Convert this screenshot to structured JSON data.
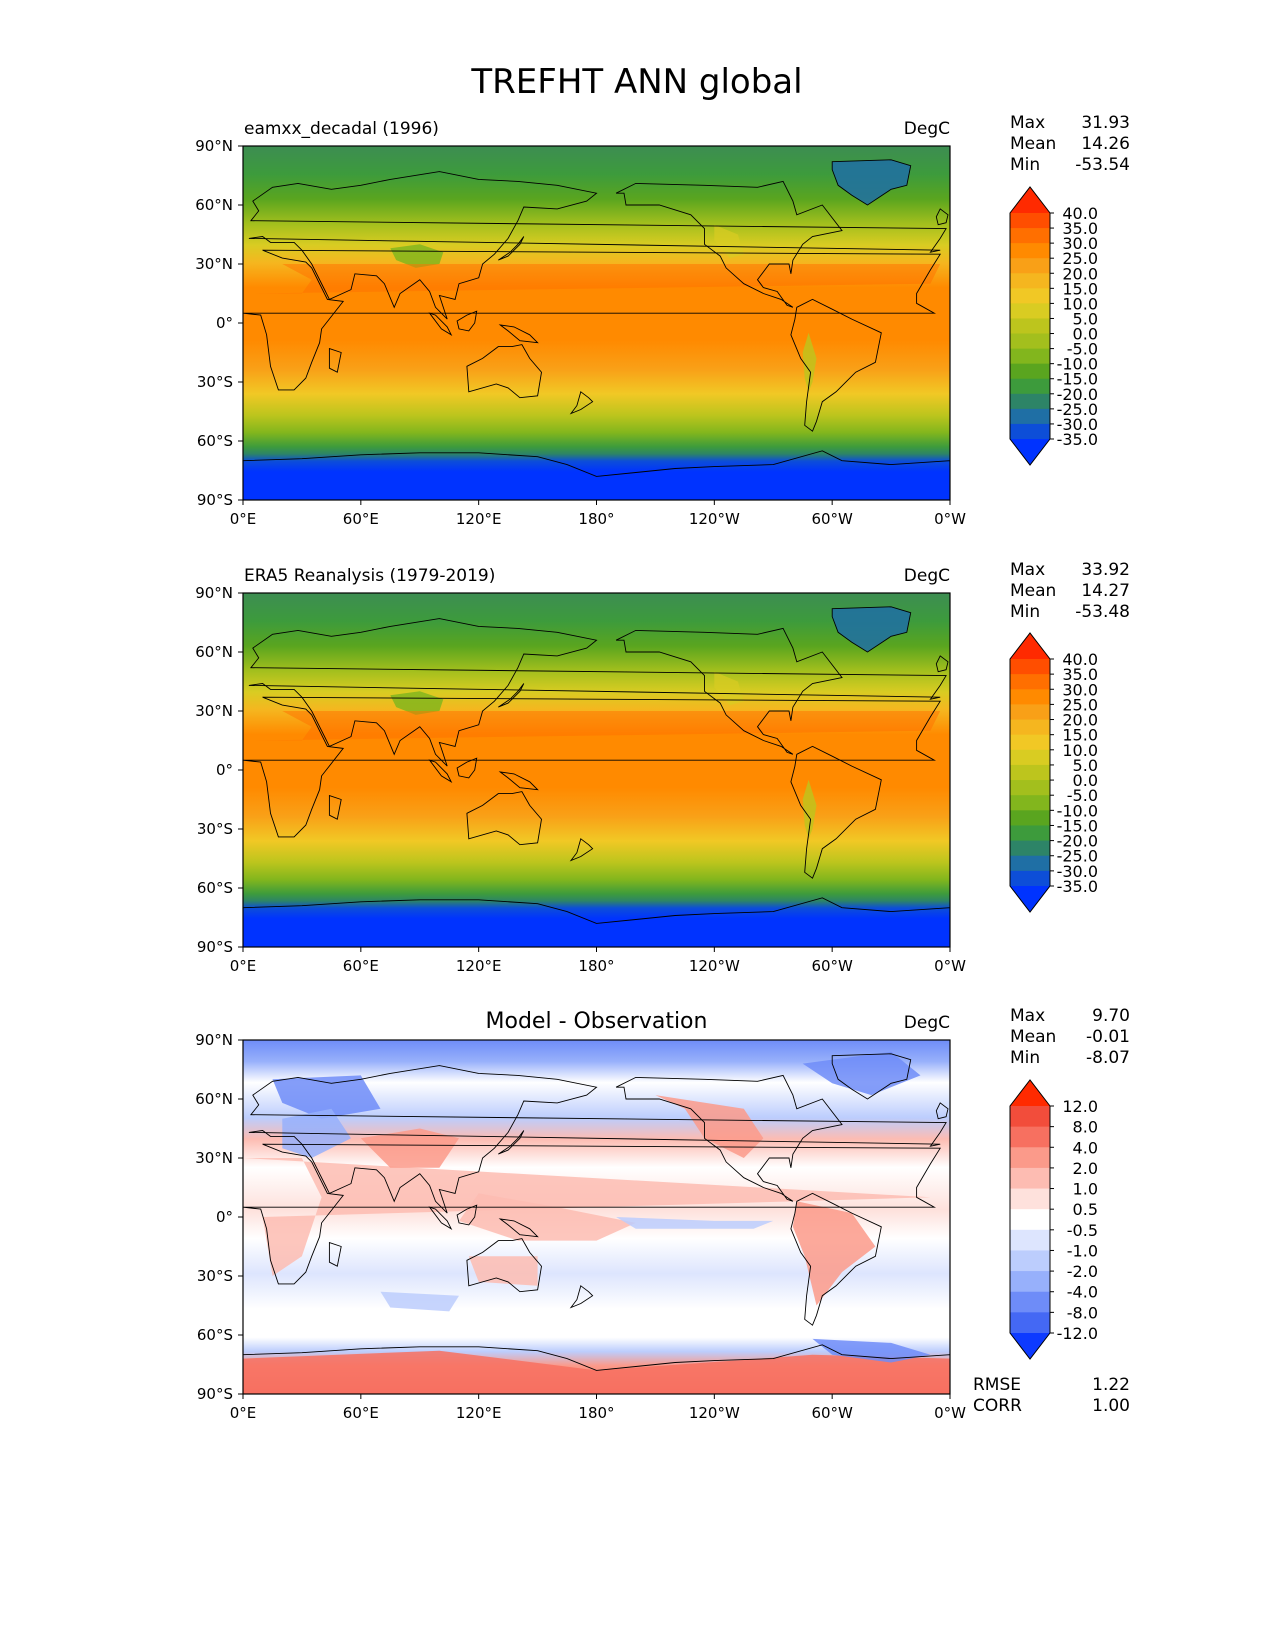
{
  "title": "TREFHT ANN global",
  "chart_data": [
    {
      "type": "heatmap",
      "title": "eamxx_decadal (1996)",
      "units": "DegC",
      "xlabel": "",
      "ylabel": "",
      "x_ticks": [
        "0°E",
        "60°E",
        "120°E",
        "180°",
        "120°W",
        "60°W",
        "0°W"
      ],
      "y_ticks": [
        "90°N",
        "60°N",
        "30°N",
        "0°",
        "30°S",
        "60°S",
        "90°S"
      ],
      "xlim": [
        0,
        360
      ],
      "ylim": [
        -90,
        90
      ],
      "stats": [
        {
          "label": "Max",
          "value": "31.93"
        },
        {
          "label": "Mean",
          "value": "14.26"
        },
        {
          "label": "Min",
          "value": "-53.54"
        }
      ],
      "colorbar": {
        "levels": [
          "40.0",
          "35.0",
          "30.0",
          "25.0",
          "20.0",
          "15.0",
          "10.0",
          "5.0",
          "0.0",
          "-5.0",
          "-10.0",
          "-15.0",
          "-20.0",
          "-25.0",
          "-30.0",
          "-35.0"
        ],
        "colors": [
          "#ff2a00",
          "#ff4e00",
          "#ff6f00",
          "#ff8a00",
          "#f9a017",
          "#f5b61f",
          "#f1c825",
          "#d9cc22",
          "#bdc51d",
          "#a3bf1d",
          "#82b61d",
          "#5aa51f",
          "#3d9b3c",
          "#2d8467",
          "#1f6fa5",
          "#0d4ed8",
          "#0033ff"
        ]
      },
      "field": "temperature"
    },
    {
      "type": "heatmap",
      "title": "ERA5 Reanalysis (1979-2019)",
      "units": "DegC",
      "xlabel": "",
      "ylabel": "",
      "x_ticks": [
        "0°E",
        "60°E",
        "120°E",
        "180°",
        "120°W",
        "60°W",
        "0°W"
      ],
      "y_ticks": [
        "90°N",
        "60°N",
        "30°N",
        "0°",
        "30°S",
        "60°S",
        "90°S"
      ],
      "xlim": [
        0,
        360
      ],
      "ylim": [
        -90,
        90
      ],
      "stats": [
        {
          "label": "Max",
          "value": "33.92"
        },
        {
          "label": "Mean",
          "value": "14.27"
        },
        {
          "label": "Min",
          "value": "-53.48"
        }
      ],
      "colorbar": {
        "levels": [
          "40.0",
          "35.0",
          "30.0",
          "25.0",
          "20.0",
          "15.0",
          "10.0",
          "5.0",
          "0.0",
          "-5.0",
          "-10.0",
          "-15.0",
          "-20.0",
          "-25.0",
          "-30.0",
          "-35.0"
        ],
        "colors": [
          "#ff2a00",
          "#ff4e00",
          "#ff6f00",
          "#ff8a00",
          "#f9a017",
          "#f5b61f",
          "#f1c825",
          "#d9cc22",
          "#bdc51d",
          "#a3bf1d",
          "#82b61d",
          "#5aa51f",
          "#3d9b3c",
          "#2d8467",
          "#1f6fa5",
          "#0d4ed8",
          "#0033ff"
        ]
      },
      "field": "temperature"
    },
    {
      "type": "heatmap",
      "title": "Model - Observation",
      "units": "DegC",
      "xlabel": "",
      "ylabel": "",
      "x_ticks": [
        "0°E",
        "60°E",
        "120°E",
        "180°",
        "120°W",
        "60°W",
        "0°W"
      ],
      "y_ticks": [
        "90°N",
        "60°N",
        "30°N",
        "0°",
        "30°S",
        "60°S",
        "90°S"
      ],
      "xlim": [
        0,
        360
      ],
      "ylim": [
        -90,
        90
      ],
      "stats": [
        {
          "label": "Max",
          "value": "9.70"
        },
        {
          "label": "Mean",
          "value": "-0.01"
        },
        {
          "label": "Min",
          "value": "-8.07"
        }
      ],
      "extra_stats": [
        {
          "label": "RMSE",
          "value": "1.22"
        },
        {
          "label": "CORR",
          "value": "1.00"
        }
      ],
      "colorbar": {
        "levels": [
          "12.0",
          "8.0",
          "4.0",
          "2.0",
          "1.0",
          "0.5",
          "-0.5",
          "-1.0",
          "-2.0",
          "-4.0",
          "-8.0",
          "-12.0"
        ],
        "colors": [
          "#ff2a00",
          "#f24d3b",
          "#f77060",
          "#fb9a8a",
          "#fdbcb2",
          "#fee1dc",
          "#ffffff",
          "#dde5fe",
          "#bccdfd",
          "#97b0fb",
          "#6e8cf8",
          "#4468f4",
          "#0d3aff"
        ]
      },
      "field": "difference"
    }
  ]
}
